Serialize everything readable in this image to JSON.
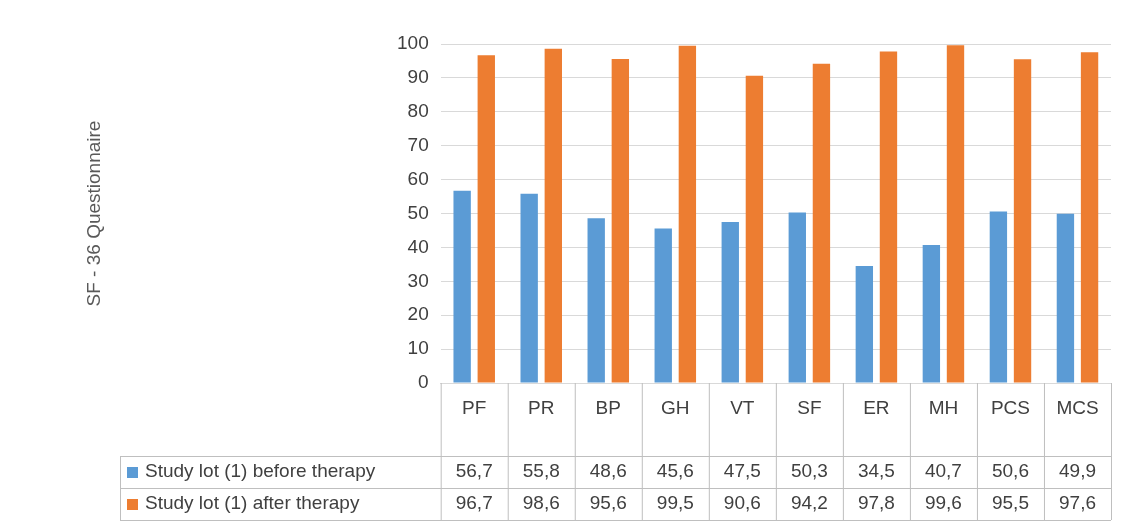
{
  "chart_data": {
    "type": "bar",
    "annotations": [
      "SF - 36 Questionnaire"
    ],
    "categories": [
      "PF",
      "PR",
      "BP",
      "GH",
      "VT",
      "SF",
      "ER",
      "MH",
      "PCS",
      "MCS"
    ],
    "series": [
      {
        "name": "Study lot (1) before therapy",
        "color": "#5b9bd5",
        "values": [
          56.7,
          55.8,
          48.6,
          45.6,
          47.5,
          50.3,
          34.5,
          40.7,
          50.6,
          49.9
        ],
        "value_labels": [
          "56,7",
          "55,8",
          "48,6",
          "45,6",
          "47,5",
          "50,3",
          "34,5",
          "40,7",
          "50,6",
          "49,9"
        ]
      },
      {
        "name": "Study lot (1) after therapy",
        "color": "#ed7d31",
        "values": [
          96.7,
          98.6,
          95.6,
          99.5,
          90.6,
          94.2,
          97.8,
          99.6,
          95.5,
          97.6
        ],
        "value_labels": [
          "96,7",
          "98,6",
          "95,6",
          "99,5",
          "90,6",
          "94,2",
          "97,8",
          "99,6",
          "95,5",
          "97,6"
        ]
      }
    ],
    "ylim": [
      0,
      100
    ],
    "yticks": [
      0,
      10,
      20,
      30,
      40,
      50,
      60,
      70,
      80,
      90,
      100
    ],
    "grid": "y",
    "legend": "bottom"
  }
}
